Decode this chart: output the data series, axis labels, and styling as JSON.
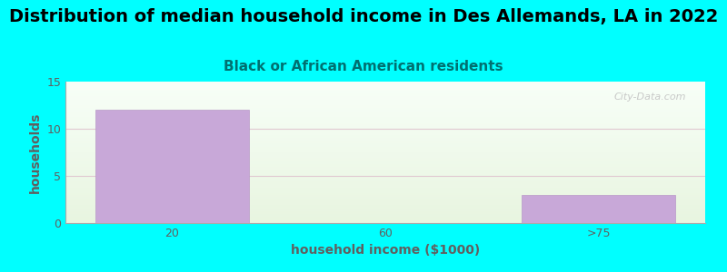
{
  "title": "Distribution of median household income in Des Allemands, LA in 2022",
  "subtitle": "Black or African American residents",
  "xlabel": "household income ($1000)",
  "ylabel": "households",
  "background_color": "#00FFFF",
  "plot_bg_top": "#f8fff8",
  "plot_bg_bottom": "#e8f5e0",
  "bar_color": "#c8a8d8",
  "bar_edge_color": "#b898c8",
  "categories": [
    "20",
    "60",
    ">75"
  ],
  "values": [
    12,
    0,
    3
  ],
  "bar_positions": [
    0,
    1,
    2
  ],
  "ylim": [
    0,
    15
  ],
  "yticks": [
    0,
    5,
    10,
    15
  ],
  "title_fontsize": 14,
  "subtitle_fontsize": 11,
  "title_color": "#000000",
  "subtitle_color": "#007070",
  "axis_label_fontsize": 10,
  "tick_label_fontsize": 9,
  "tick_color": "#606060",
  "grid_color": "#e0c8d0",
  "watermark": "City-Data.com",
  "watermark_color": "#c0c0c0"
}
